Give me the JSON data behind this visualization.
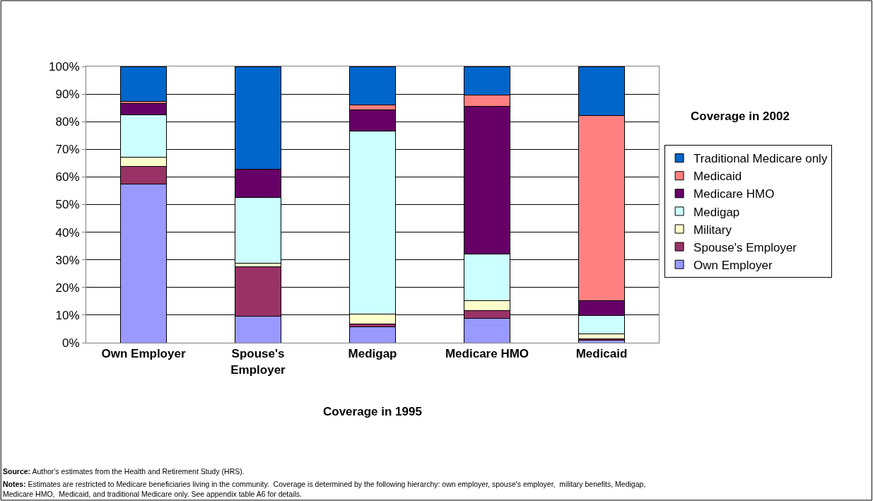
{
  "chart_data": {
    "type": "bar",
    "stacked": true,
    "xlabel": "Coverage in 1995",
    "legend_title": "Coverage in 2002",
    "categories": [
      "Own Employer",
      "Spouse's Employer",
      "Medigap",
      "Medicare HMO",
      "Medicaid"
    ],
    "series": [
      {
        "name": "Own Employer",
        "color": "#9999ff",
        "values": [
          57.5,
          9.5,
          5.8,
          8.7,
          0.9
        ]
      },
      {
        "name": "Spouse's Employer",
        "color": "#993366",
        "values": [
          6.3,
          18.1,
          1.0,
          3.0,
          0.6
        ]
      },
      {
        "name": "Military",
        "color": "#ffffcc",
        "values": [
          3.4,
          1.1,
          3.5,
          3.5,
          1.7
        ]
      },
      {
        "name": "Medigap",
        "color": "#ccffff",
        "values": [
          15.4,
          23.9,
          66.3,
          16.8,
          6.6
        ]
      },
      {
        "name": "Medicare HMO",
        "color": "#660066",
        "values": [
          3.9,
          10.3,
          7.8,
          53.5,
          5.4
        ]
      },
      {
        "name": "Medicaid",
        "color": "#ff8080",
        "values": [
          0.9,
          0,
          1.6,
          4.1,
          66.9
        ]
      },
      {
        "name": "Traditional Medicare only",
        "color": "#0066cc",
        "values": [
          12.6,
          37.1,
          14.0,
          10.4,
          17.9
        ]
      }
    ],
    "ylim": [
      0,
      100
    ],
    "yticks": [
      {
        "value": 0,
        "label": "0%"
      },
      {
        "value": 10,
        "label": "10%"
      },
      {
        "value": 20,
        "label": "20%"
      },
      {
        "value": 30,
        "label": "30%"
      },
      {
        "value": 40,
        "label": "40%"
      },
      {
        "value": 50,
        "label": "50%"
      },
      {
        "value": 60,
        "label": "60%"
      },
      {
        "value": 70,
        "label": "70%"
      },
      {
        "value": 80,
        "label": "80%"
      },
      {
        "value": 90,
        "label": "90%"
      },
      {
        "value": 100,
        "label": "100%"
      }
    ],
    "grid": "y",
    "legend": "right",
    "annotations": [
      "Source: Author's estimates from the Health and Retirement Study (HRS).",
      "Notes: Estimates are restricted to Medicare beneficiaries living in the community.  Coverage is determined by the following hierarchy: own employer, spouse's employer,  military benefits, Medigap, Medicare HMO,  Medicaid, and traditional Medicare only. See appendix table A6 for details."
    ]
  }
}
